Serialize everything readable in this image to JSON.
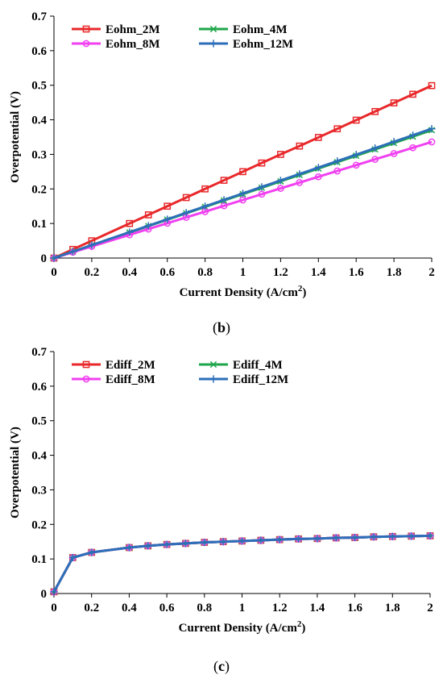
{
  "captions": {
    "b": "b",
    "c": "c"
  },
  "chart_data": [
    {
      "type": "line",
      "panel": "b",
      "xlabel": "Current Density (A/cm2)",
      "xlabel_parts": {
        "main": "Current Density (A/cm",
        "sup": "2",
        "end": ")"
      },
      "ylabel": "Overpotential (V)",
      "xlim": [
        0,
        2
      ],
      "ylim": [
        0,
        0.7
      ],
      "xticks": [
        0,
        0.2,
        0.4,
        0.6,
        0.8,
        1,
        1.2,
        1.4,
        1.6,
        1.8,
        2
      ],
      "xtick_labels": [
        "0",
        "0.2",
        "0.4",
        "0.6",
        "0.8",
        "1",
        "1.2",
        "1.4",
        "1.6",
        "1.8",
        "2"
      ],
      "yticks": [
        0,
        0.1,
        0.2,
        0.3,
        0.4,
        0.5,
        0.6,
        0.7
      ],
      "ytick_labels": [
        "0",
        "0.1",
        "0.2",
        "0.3",
        "0.4",
        "0.5",
        "0.6",
        "0.7"
      ],
      "grid": false,
      "legend_position": "top-left",
      "x": [
        0,
        0.1,
        0.2,
        0.4,
        0.5,
        0.6,
        0.7,
        0.8,
        0.9,
        1.0,
        1.1,
        1.2,
        1.3,
        1.4,
        1.5,
        1.6,
        1.7,
        1.8,
        1.9,
        2.0
      ],
      "series": [
        {
          "name": "Eohm_2M",
          "color": "#e8282b",
          "marker": "square",
          "values": [
            0,
            0.025,
            0.05,
            0.1,
            0.125,
            0.15,
            0.175,
            0.2,
            0.225,
            0.25,
            0.275,
            0.3,
            0.324,
            0.349,
            0.374,
            0.399,
            0.424,
            0.449,
            0.474,
            0.499
          ]
        },
        {
          "name": "Eohm_4M",
          "color": "#1fa64a",
          "marker": "x",
          "values": [
            0,
            0.0185,
            0.037,
            0.074,
            0.0925,
            0.111,
            0.1295,
            0.148,
            0.1665,
            0.185,
            0.2035,
            0.222,
            0.2405,
            0.259,
            0.2775,
            0.296,
            0.3145,
            0.333,
            0.3515,
            0.37
          ]
        },
        {
          "name": "Eohm_8M",
          "color": "#f040f0",
          "marker": "circle",
          "values": [
            0,
            0.0168,
            0.0336,
            0.0672,
            0.084,
            0.1008,
            0.1176,
            0.1344,
            0.1512,
            0.168,
            0.1848,
            0.2016,
            0.2184,
            0.2352,
            0.252,
            0.2688,
            0.2856,
            0.3024,
            0.3192,
            0.336
          ]
        },
        {
          "name": "Eohm_12M",
          "color": "#2c6fb8",
          "marker": "plus",
          "values": [
            0,
            0.0187,
            0.0374,
            0.0748,
            0.0935,
            0.1122,
            0.1309,
            0.1496,
            0.1683,
            0.187,
            0.2057,
            0.2244,
            0.2431,
            0.2618,
            0.2805,
            0.2992,
            0.3179,
            0.3366,
            0.3553,
            0.374
          ]
        }
      ]
    },
    {
      "type": "line",
      "panel": "c",
      "xlabel": "Current Density (A/cm2)",
      "xlabel_parts": {
        "main": "Current Density (A/cm",
        "sup": "2",
        "end": ")"
      },
      "ylabel": "Overpotential (V)",
      "xlim": [
        0,
        2
      ],
      "ylim": [
        0,
        0.7
      ],
      "xticks": [
        0,
        0.2,
        0.4,
        0.6,
        0.8,
        1,
        1.2,
        1.4,
        1.6,
        1.8,
        2
      ],
      "xtick_labels": [
        "0",
        "0.2",
        "0.4",
        "0.6",
        "0.8",
        "1",
        "1.2",
        "1.4",
        "1.6",
        "1.8",
        "2"
      ],
      "yticks": [
        0,
        0.1,
        0.2,
        0.3,
        0.4,
        0.5,
        0.6,
        0.7
      ],
      "ytick_labels": [
        "0",
        "0.1",
        "0.2",
        "0.3",
        "0.4",
        "0.5",
        "0.6",
        "0.7"
      ],
      "grid": false,
      "legend_position": "top-left",
      "x": [
        0,
        0.1,
        0.2,
        0.4,
        0.5,
        0.6,
        0.7,
        0.8,
        0.9,
        1.0,
        1.1,
        1.2,
        1.3,
        1.4,
        1.5,
        1.6,
        1.7,
        1.8,
        1.9,
        2.0
      ],
      "series": [
        {
          "name": "Ediff_2M",
          "color": "#e8282b",
          "marker": "square",
          "values": [
            0.005,
            0.104,
            0.119,
            0.133,
            0.138,
            0.142,
            0.145,
            0.148,
            0.15,
            0.152,
            0.154,
            0.156,
            0.158,
            0.159,
            0.161,
            0.162,
            0.164,
            0.165,
            0.166,
            0.167
          ]
        },
        {
          "name": "Ediff_4M",
          "color": "#1fa64a",
          "marker": "x",
          "values": [
            0.005,
            0.104,
            0.119,
            0.133,
            0.138,
            0.142,
            0.145,
            0.148,
            0.15,
            0.152,
            0.154,
            0.156,
            0.158,
            0.159,
            0.161,
            0.162,
            0.164,
            0.165,
            0.166,
            0.167
          ]
        },
        {
          "name": "Ediff_8M",
          "color": "#f040f0",
          "marker": "circle",
          "values": [
            0.005,
            0.104,
            0.119,
            0.133,
            0.138,
            0.142,
            0.145,
            0.148,
            0.15,
            0.152,
            0.154,
            0.156,
            0.158,
            0.159,
            0.161,
            0.162,
            0.164,
            0.165,
            0.166,
            0.167
          ]
        },
        {
          "name": "Ediff_12M",
          "color": "#2c6fb8",
          "marker": "plus",
          "values": [
            0.005,
            0.104,
            0.119,
            0.133,
            0.138,
            0.142,
            0.145,
            0.148,
            0.15,
            0.152,
            0.154,
            0.156,
            0.158,
            0.159,
            0.161,
            0.162,
            0.164,
            0.165,
            0.166,
            0.167
          ]
        }
      ]
    }
  ]
}
